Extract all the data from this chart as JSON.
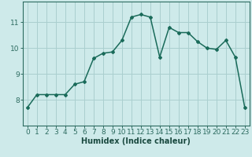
{
  "x": [
    0,
    1,
    2,
    3,
    4,
    5,
    6,
    7,
    8,
    9,
    10,
    11,
    12,
    13,
    14,
    15,
    16,
    17,
    18,
    19,
    20,
    21,
    22,
    23
  ],
  "y": [
    7.7,
    8.2,
    8.2,
    8.2,
    8.2,
    8.6,
    8.7,
    9.6,
    9.8,
    9.85,
    10.3,
    11.2,
    11.3,
    11.2,
    9.65,
    10.8,
    10.6,
    10.6,
    10.25,
    10.0,
    9.95,
    10.3,
    9.65,
    7.7
  ],
  "xlabel": "Humidex (Indice chaleur)",
  "xlim": [
    -0.5,
    23.5
  ],
  "ylim": [
    7.0,
    11.8
  ],
  "yticks": [
    8,
    9,
    10,
    11
  ],
  "xticks": [
    0,
    1,
    2,
    3,
    4,
    5,
    6,
    7,
    8,
    9,
    10,
    11,
    12,
    13,
    14,
    15,
    16,
    17,
    18,
    19,
    20,
    21,
    22,
    23
  ],
  "line_color": "#1a6b5a",
  "marker": "D",
  "marker_size": 2.0,
  "bg_color": "#ceeaea",
  "grid_color": "#aacfcf",
  "axis_color": "#2d6b60",
  "label_color": "#1a4a40",
  "xlabel_fontsize": 7.0,
  "tick_fontsize": 6.5,
  "line_width": 1.1
}
